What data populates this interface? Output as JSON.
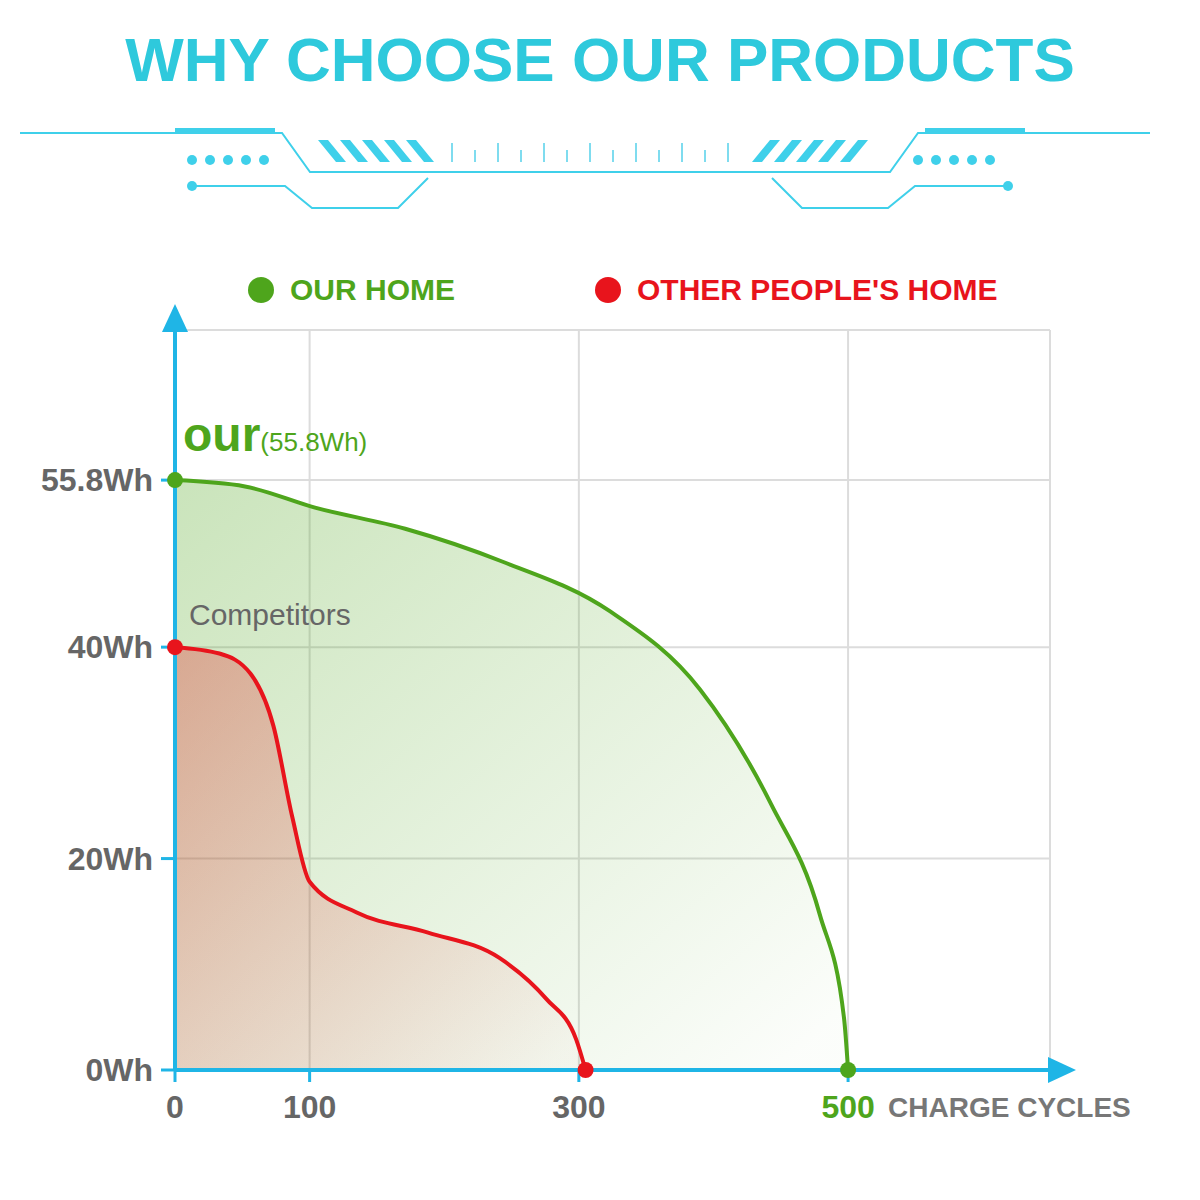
{
  "chart_data": {
    "type": "area",
    "title": "WHY CHOOSE OUR PRODUCTS",
    "x_label": "CHARGE CYCLES",
    "series": [
      {
        "name": "OUR HOME",
        "color": "#4ea51c",
        "x": [
          0,
          52,
          104,
          171,
          243,
          323,
          390,
          443,
          479,
          497,
          500
        ],
        "values": [
          55.8,
          55.2,
          53.2,
          51.2,
          48.1,
          43.4,
          36.0,
          25.1,
          14.7,
          4.9,
          0
        ]
      },
      {
        "name": "OTHER PEOPLE'S HOME",
        "color": "#e8141c",
        "x": [
          0,
          33,
          56,
          73,
          87,
          100,
          135,
          188,
          241,
          276,
          298,
          305
        ],
        "values": [
          40,
          39.4,
          37.5,
          32.6,
          24.0,
          17.8,
          14.9,
          13.0,
          10.6,
          6.7,
          2.9,
          0
        ]
      }
    ],
    "xlim": [
      0,
      650
    ],
    "xticks": [
      0,
      100,
      300,
      500
    ],
    "ylim": [
      0,
      70
    ],
    "yticks": [
      {
        "value": 0,
        "label": "0Wh"
      },
      {
        "value": 20,
        "label": "20Wh"
      },
      {
        "value": 40,
        "label": "40Wh"
      },
      {
        "value": 55.8,
        "label": "55.8Wh"
      }
    ],
    "grid": true,
    "legend": "top",
    "annotations": [
      "our",
      "(55.8Wh)",
      "Competitors"
    ]
  }
}
